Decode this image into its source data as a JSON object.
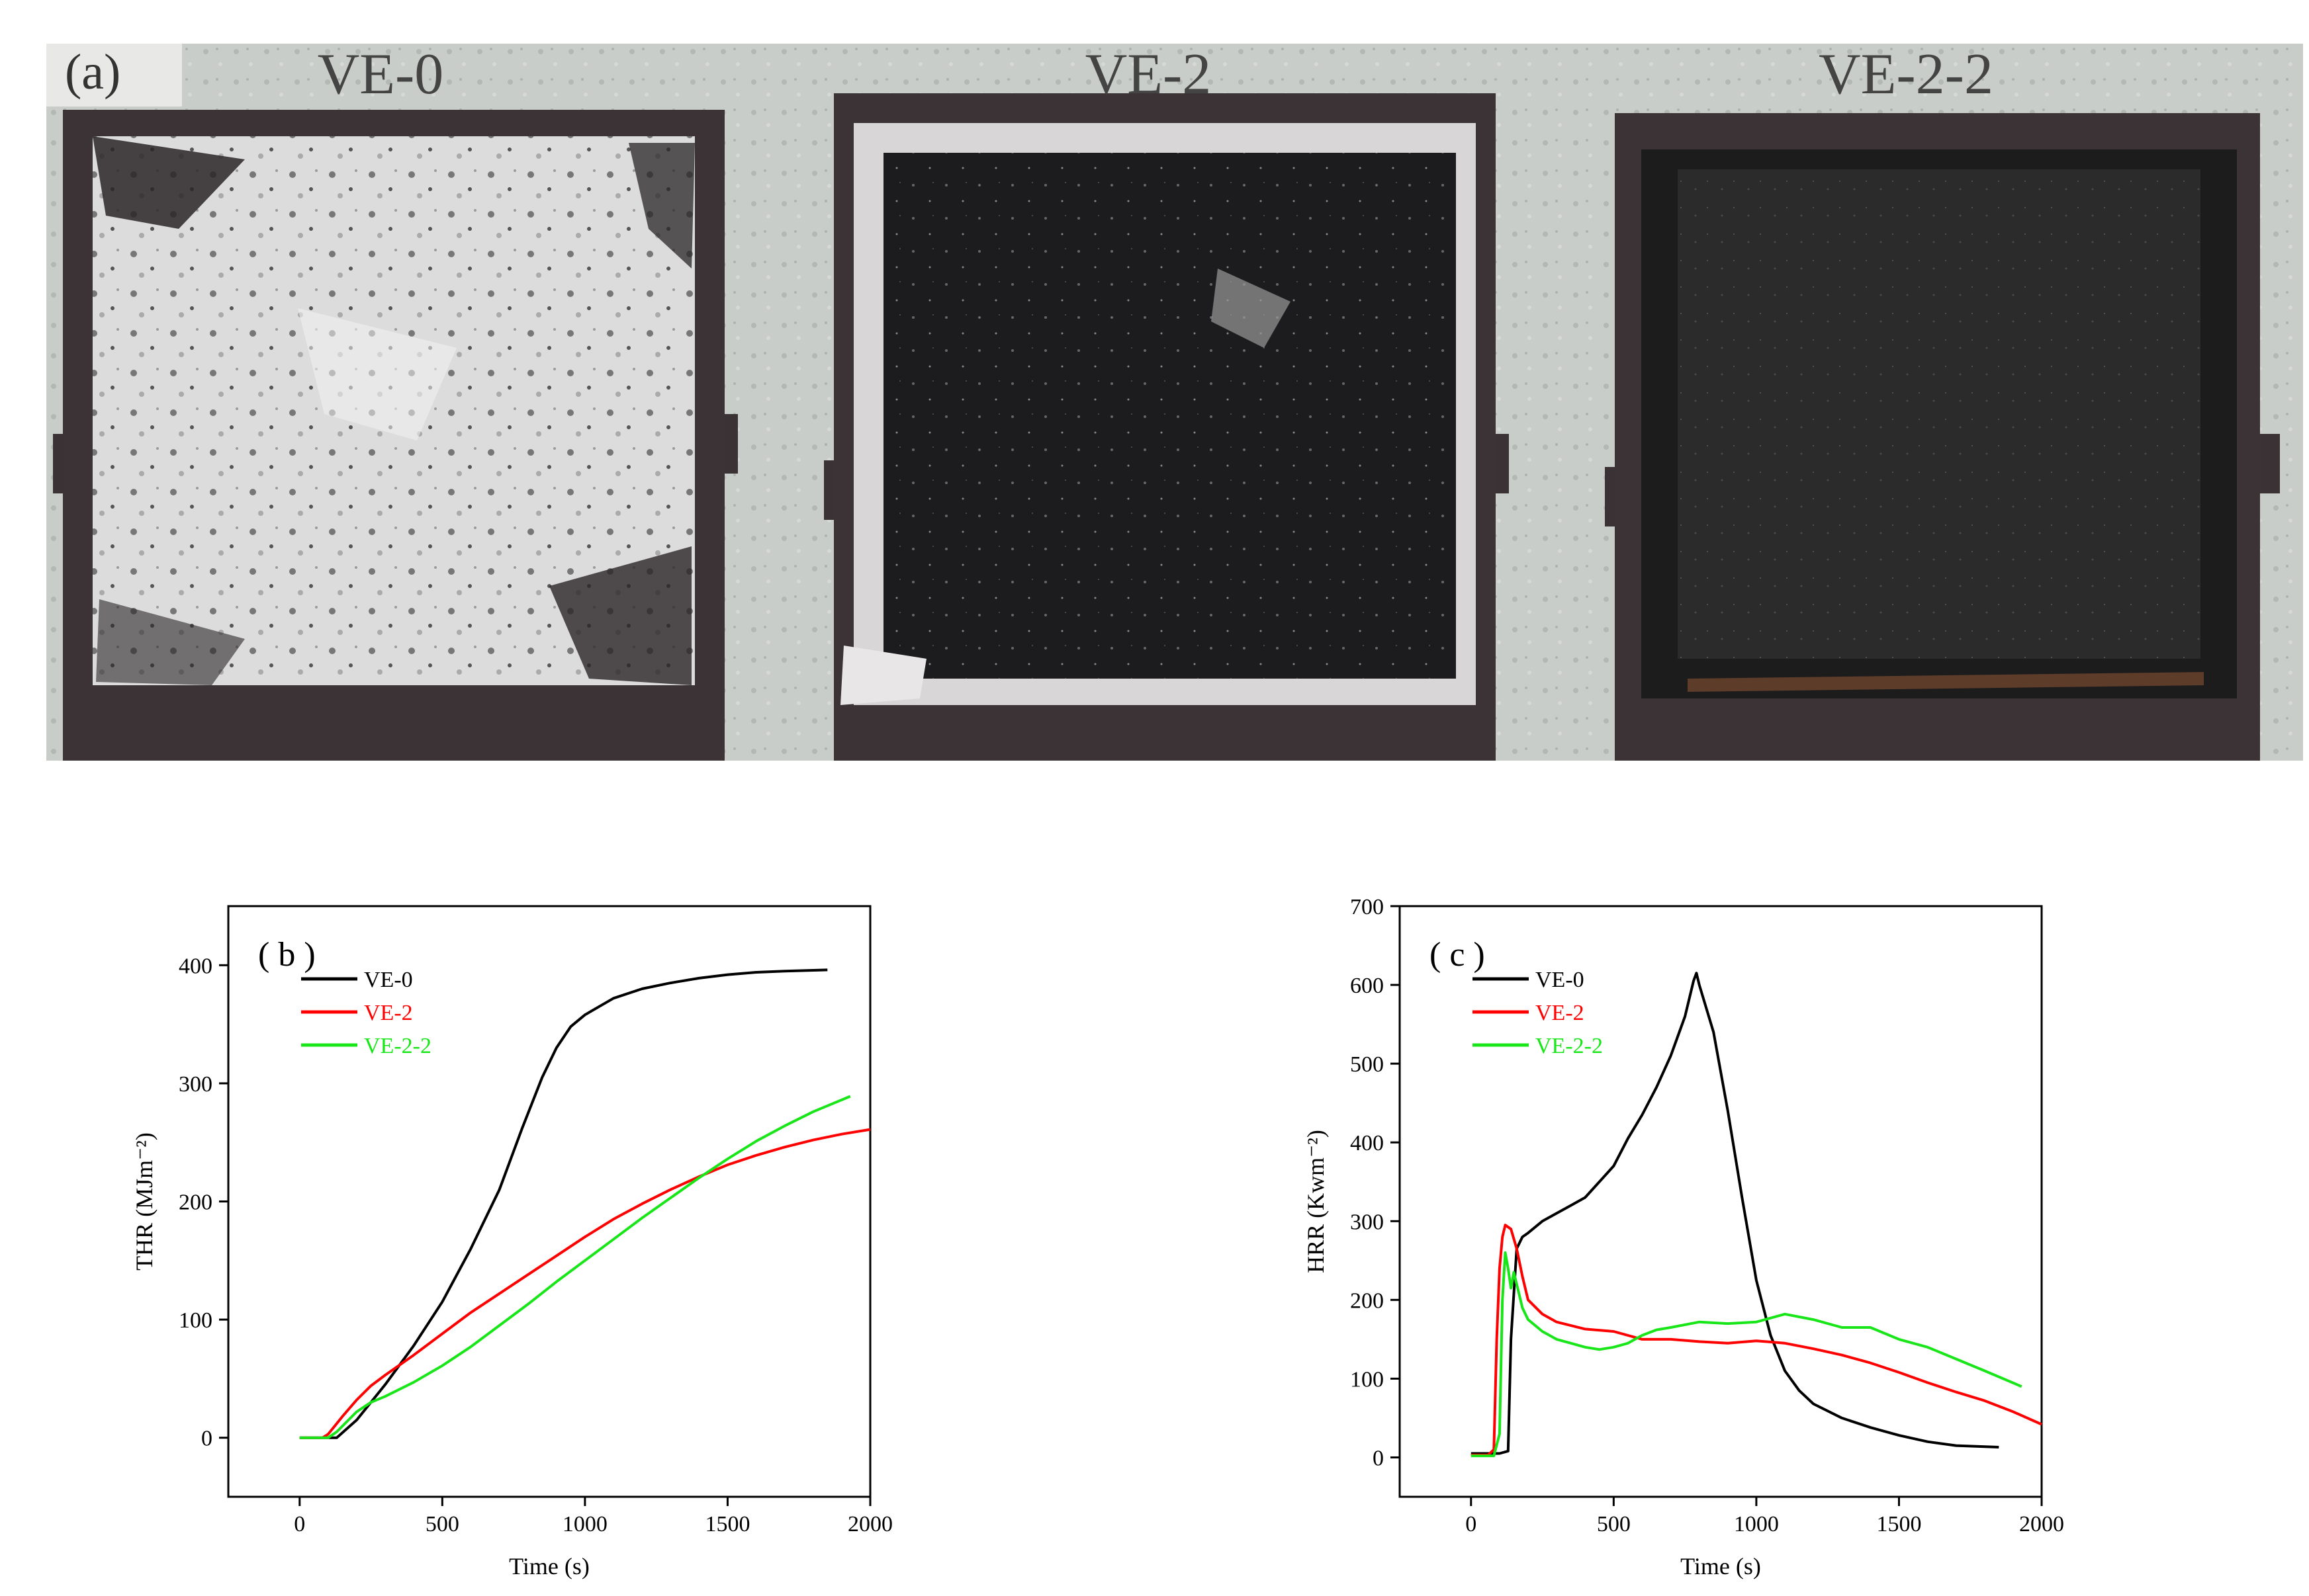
{
  "panel_a": {
    "label": "(a)",
    "samples": [
      "VE-0",
      "VE-2",
      "VE-2-2"
    ]
  },
  "colors": {
    "VE-0": "#000000",
    "VE-2": "#ff0000",
    "VE-2-2": "#19e619"
  },
  "chart_data": [
    {
      "type": "line",
      "panel_label": "( b )",
      "xlabel": "Time (s)",
      "ylabel": "THR (MJm⁻²)",
      "xlim": [
        -250,
        2000
      ],
      "ylim": [
        -50,
        450
      ],
      "xticks": [
        0,
        500,
        1000,
        1500,
        2000
      ],
      "yticks": [
        0,
        100,
        200,
        300,
        400
      ],
      "legend_position": "top-left",
      "series": [
        {
          "name": "VE-0",
          "color": "#000000",
          "x": [
            0,
            100,
            130,
            200,
            300,
            400,
            500,
            600,
            700,
            780,
            850,
            900,
            950,
            1000,
            1050,
            1100,
            1200,
            1300,
            1400,
            1500,
            1600,
            1700,
            1850
          ],
          "y": [
            0,
            0,
            0,
            15,
            45,
            78,
            115,
            160,
            210,
            262,
            305,
            330,
            348,
            358,
            365,
            372,
            380,
            385,
            389,
            392,
            394,
            395,
            396
          ]
        },
        {
          "name": "VE-2",
          "color": "#ff0000",
          "x": [
            0,
            80,
            100,
            150,
            200,
            250,
            300,
            400,
            500,
            600,
            700,
            800,
            900,
            1000,
            1100,
            1200,
            1300,
            1400,
            1500,
            1600,
            1700,
            1800,
            1900,
            2000
          ],
          "y": [
            0,
            0,
            3,
            18,
            32,
            44,
            53,
            70,
            88,
            106,
            122,
            138,
            154,
            170,
            185,
            198,
            210,
            221,
            231,
            239,
            246,
            252,
            257,
            261
          ]
        },
        {
          "name": "VE-2-2",
          "color": "#19e619",
          "x": [
            0,
            100,
            130,
            200,
            250,
            300,
            400,
            500,
            600,
            700,
            800,
            900,
            1000,
            1100,
            1200,
            1300,
            1400,
            1500,
            1600,
            1700,
            1800,
            1930
          ],
          "y": [
            0,
            0,
            5,
            22,
            30,
            35,
            47,
            61,
            77,
            95,
            113,
            132,
            150,
            168,
            186,
            203,
            220,
            236,
            251,
            264,
            276,
            289
          ]
        }
      ]
    },
    {
      "type": "line",
      "panel_label": "( c )",
      "xlabel": "Time (s)",
      "ylabel": "HRR (Kwm⁻²)",
      "xlim": [
        -250,
        2000
      ],
      "ylim": [
        -50,
        700
      ],
      "xticks": [
        0,
        500,
        1000,
        1500,
        2000
      ],
      "yticks": [
        0,
        100,
        200,
        300,
        400,
        500,
        600,
        700
      ],
      "legend_position": "top-left",
      "series": [
        {
          "name": "VE-0",
          "color": "#000000",
          "x": [
            0,
            100,
            130,
            140,
            160,
            180,
            200,
            250,
            300,
            350,
            400,
            450,
            500,
            550,
            600,
            650,
            700,
            750,
            780,
            790,
            800,
            850,
            900,
            950,
            1000,
            1050,
            1100,
            1150,
            1200,
            1300,
            1400,
            1500,
            1600,
            1700,
            1850
          ],
          "y": [
            5,
            5,
            8,
            150,
            265,
            280,
            285,
            300,
            310,
            320,
            330,
            350,
            370,
            405,
            435,
            470,
            510,
            560,
            605,
            615,
            600,
            540,
            440,
            330,
            225,
            155,
            110,
            85,
            68,
            50,
            38,
            28,
            20,
            15,
            13
          ]
        },
        {
          "name": "VE-2",
          "color": "#ff0000",
          "x": [
            0,
            60,
            80,
            90,
            100,
            110,
            120,
            140,
            160,
            180,
            200,
            250,
            300,
            400,
            500,
            600,
            700,
            800,
            900,
            1000,
            1100,
            1200,
            1300,
            1400,
            1500,
            1600,
            1700,
            1800,
            1900,
            2000
          ],
          "y": [
            3,
            3,
            10,
            150,
            240,
            280,
            295,
            290,
            265,
            230,
            200,
            182,
            172,
            163,
            160,
            150,
            150,
            147,
            145,
            148,
            145,
            138,
            130,
            120,
            108,
            95,
            83,
            72,
            58,
            42
          ]
        },
        {
          "name": "VE-2-2",
          "color": "#19e619",
          "x": [
            0,
            80,
            100,
            110,
            120,
            130,
            140,
            150,
            160,
            180,
            200,
            250,
            300,
            350,
            400,
            450,
            500,
            550,
            600,
            650,
            700,
            800,
            900,
            1000,
            1100,
            1200,
            1300,
            1400,
            1500,
            1600,
            1700,
            1800,
            1930
          ],
          "y": [
            2,
            2,
            30,
            200,
            260,
            240,
            215,
            235,
            220,
            190,
            175,
            160,
            150,
            145,
            140,
            137,
            140,
            145,
            155,
            162,
            165,
            172,
            170,
            172,
            182,
            175,
            165,
            165,
            150,
            140,
            125,
            110,
            90
          ]
        }
      ]
    }
  ]
}
